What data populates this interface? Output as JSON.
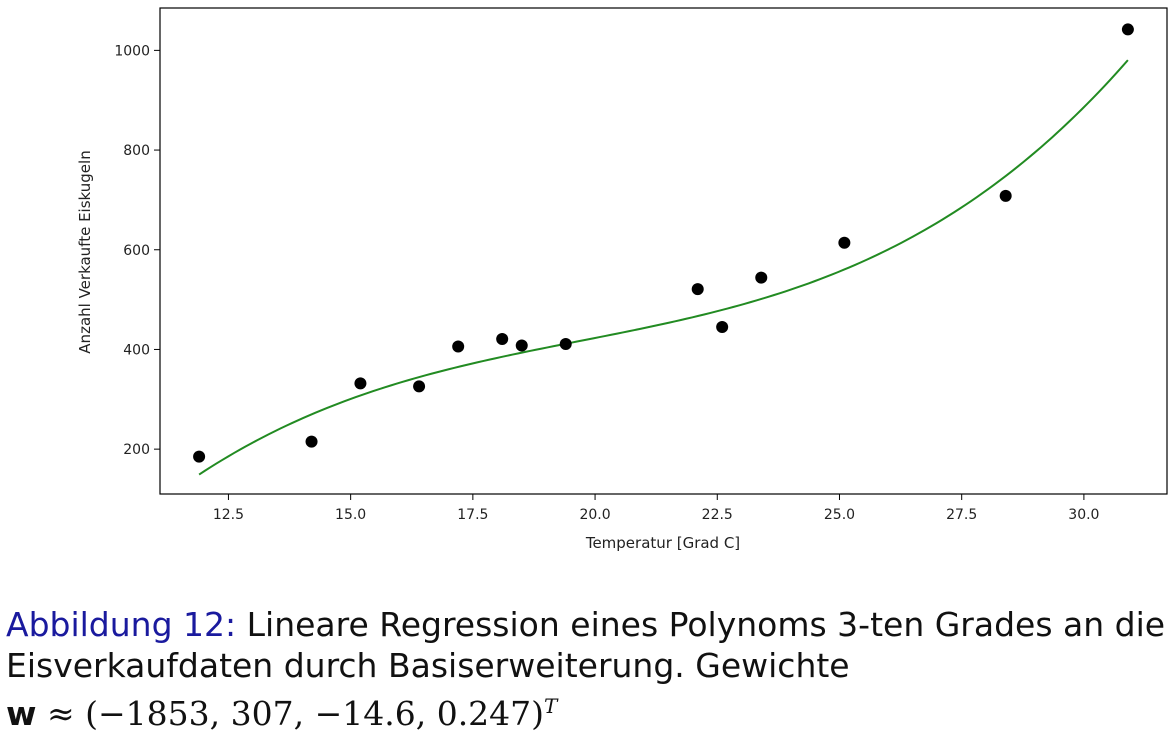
{
  "chart_data": {
    "type": "scatter",
    "xlabel": "Temperatur [Grad C]",
    "ylabel": "Anzahl Verkaufte Eiskugeln",
    "xlim": [
      11.1,
      31.7
    ],
    "ylim": [
      110,
      1085
    ],
    "xticks": [
      12.5,
      15.0,
      17.5,
      20.0,
      22.5,
      25.0,
      27.5,
      30.0
    ],
    "xtick_labels": [
      "12.5",
      "15.0",
      "17.5",
      "20.0",
      "22.5",
      "25.0",
      "27.5",
      "30.0"
    ],
    "yticks": [
      200,
      400,
      600,
      800,
      1000
    ],
    "ytick_labels": [
      "200",
      "400",
      "600",
      "800",
      "1000"
    ],
    "grid": false,
    "points": {
      "x": [
        11.9,
        14.2,
        15.2,
        16.4,
        17.2,
        18.1,
        18.5,
        19.4,
        22.1,
        22.6,
        23.4,
        25.1,
        28.4,
        30.9
      ],
      "y": [
        185,
        215,
        332,
        326,
        406,
        421,
        408,
        411,
        521,
        445,
        544,
        614,
        708,
        1042
      ],
      "color": "#000000"
    },
    "fit_curve": {
      "kind": "cubic polynomial",
      "weights": [
        -1853,
        307,
        -14.6,
        0.247
      ],
      "x_range": [
        11.9,
        30.9
      ],
      "color": "#228b22"
    }
  },
  "caption": {
    "prefix": "Abbildung 12:",
    "text": "Lineare Regression eines Polynoms 3-ten Grades an die Eisverkaufdaten durch Basiserweiterung. Gewichte",
    "math_var": "w",
    "math_rest": "≈ (−1853, 307, −14.6, 0.247)",
    "superscript": "T"
  }
}
